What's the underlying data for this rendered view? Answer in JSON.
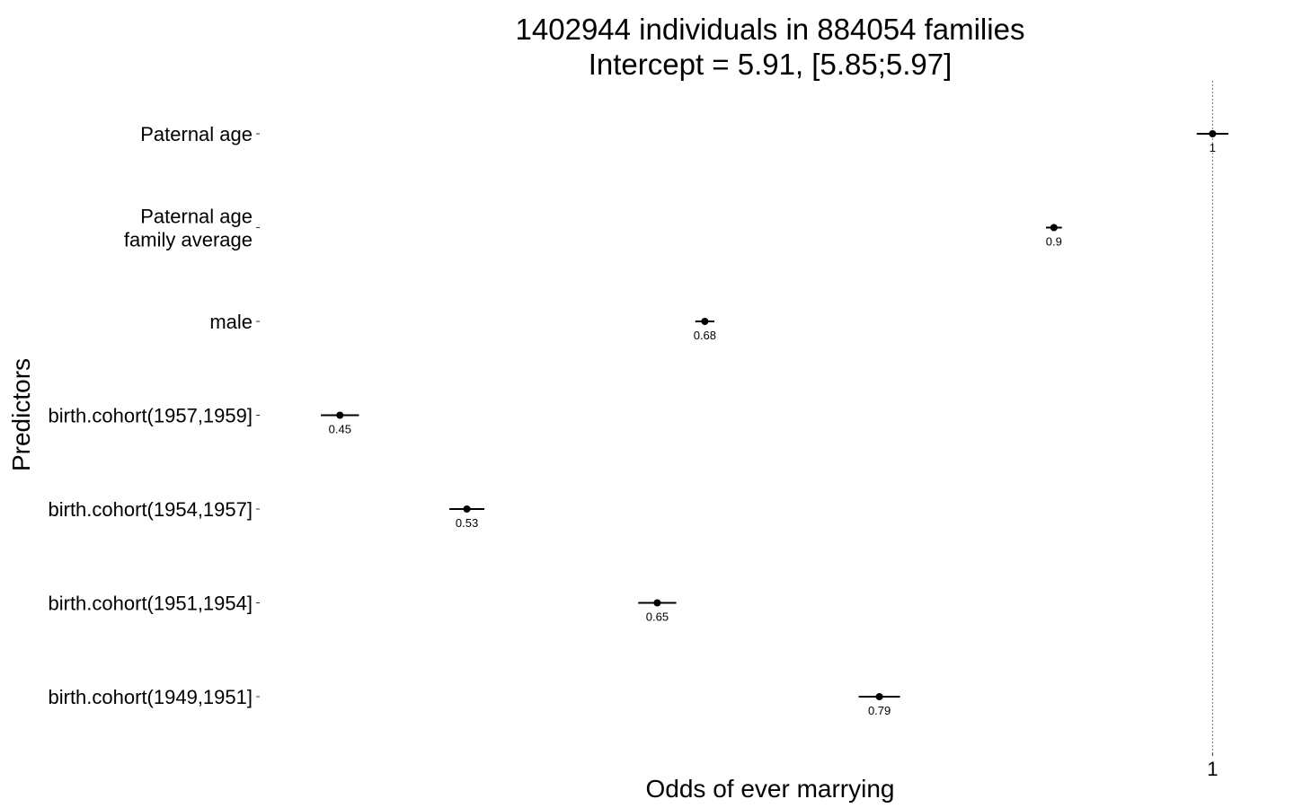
{
  "chart_data": {
    "type": "scatter",
    "title_lines": [
      "1402944 individuals in 884054 families",
      "Intercept = 5.91, [5.85;5.97]"
    ],
    "xlabel": "Odds of ever marrying",
    "ylabel": "Predictors",
    "xlim": [
      0.4,
      1.04
    ],
    "x_ticks": [
      {
        "value": 1,
        "label": "1"
      }
    ],
    "reference_line": 1,
    "grid": false,
    "predictors": [
      {
        "label_lines": [
          "Paternal age"
        ],
        "estimate": 1.0,
        "ci": [
          0.99,
          1.01
        ],
        "value_label": "1"
      },
      {
        "label_lines": [
          "Paternal age",
          "family average"
        ],
        "estimate": 0.9,
        "ci": [
          0.895,
          0.905
        ],
        "value_label": "0.9"
      },
      {
        "label_lines": [
          "male"
        ],
        "estimate": 0.68,
        "ci": [
          0.674,
          0.686
        ],
        "value_label": "0.68"
      },
      {
        "label_lines": [
          "birth.cohort(1957,1959]"
        ],
        "estimate": 0.45,
        "ci": [
          0.438,
          0.462
        ],
        "value_label": "0.45"
      },
      {
        "label_lines": [
          "birth.cohort(1954,1957]"
        ],
        "estimate": 0.53,
        "ci": [
          0.519,
          0.541
        ],
        "value_label": "0.53"
      },
      {
        "label_lines": [
          "birth.cohort(1951,1954]"
        ],
        "estimate": 0.65,
        "ci": [
          0.638,
          0.662
        ],
        "value_label": "0.65"
      },
      {
        "label_lines": [
          "birth.cohort(1949,1951]"
        ],
        "estimate": 0.79,
        "ci": [
          0.777,
          0.803
        ],
        "value_label": "0.79"
      }
    ],
    "colors": {
      "point": "#000000",
      "reference_line": "#777777"
    }
  }
}
